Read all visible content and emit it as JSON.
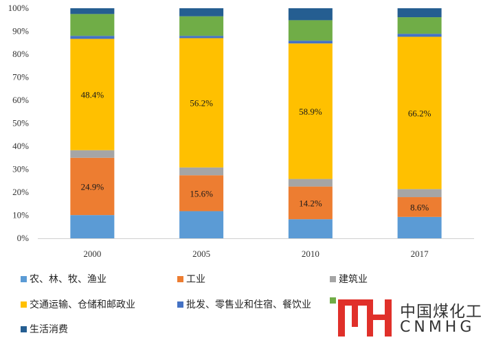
{
  "chart_data": {
    "type": "bar",
    "stacked": true,
    "percent_stacked": true,
    "categories": [
      "2000",
      "2005",
      "2010",
      "2017"
    ],
    "ylim": [
      0,
      100
    ],
    "yticks": [
      "0%",
      "10%",
      "20%",
      "30%",
      "40%",
      "50%",
      "60%",
      "70%",
      "80%",
      "90%",
      "100%"
    ],
    "grid": false,
    "legend_position": "bottom",
    "series": [
      {
        "name": "农、林、牧、渔业",
        "color": "#5b9bd5",
        "values": [
          10.1,
          11.8,
          8.3,
          9.3
        ]
      },
      {
        "name": "工业",
        "color": "#ed7d31",
        "values": [
          24.9,
          15.6,
          14.2,
          8.6
        ],
        "labels": [
          "24.9%",
          "15.6%",
          "14.2%",
          "8.6%"
        ]
      },
      {
        "name": "建筑业",
        "color": "#a5a5a5",
        "values": [
          3.3,
          3.4,
          3.3,
          3.5
        ]
      },
      {
        "name": "交通运输、仓储和邮政业",
        "color": "#ffc000",
        "values": [
          48.4,
          56.2,
          58.9,
          66.2
        ],
        "labels": [
          "48.4%",
          "56.2%",
          "58.9%",
          "66.2%"
        ]
      },
      {
        "name": "批发、零售业和住宿、餐饮业",
        "color": "#4472c4",
        "values": [
          1.3,
          1.0,
          1.2,
          1.3
        ]
      },
      {
        "name": "",
        "color": "#70ad47",
        "values": [
          9.5,
          8.5,
          8.9,
          7.2
        ]
      },
      {
        "name": "生活消费",
        "color": "#255e91",
        "values": [
          2.5,
          3.5,
          5.2,
          3.9
        ]
      }
    ]
  },
  "logo": {
    "text_cn": "中国煤化工",
    "text_en": "CNMHG"
  }
}
